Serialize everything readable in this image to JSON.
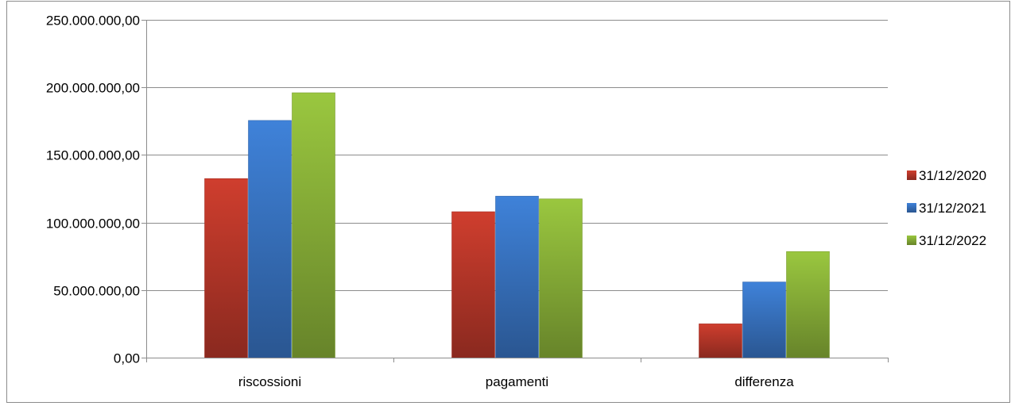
{
  "chart_data": {
    "type": "bar",
    "categories": [
      "riscossioni",
      "pagamenti",
      "differenza"
    ],
    "series": [
      {
        "name": "31/12/2020",
        "values": [
          132500000,
          108000000,
          25000000
        ],
        "color": "#c0392b"
      },
      {
        "name": "31/12/2021",
        "values": [
          175500000,
          119500000,
          56000000
        ],
        "color": "#3a78c9"
      },
      {
        "name": "31/12/2022",
        "values": [
          196000000,
          117500000,
          78500000
        ],
        "color": "#8fb83a"
      }
    ],
    "yticks": [
      "0,00",
      "50.000.000,00",
      "100.000.000,00",
      "150.000.000,00",
      "200.000.000,00",
      "250.000.000,00"
    ],
    "ylim": [
      0,
      250000000
    ],
    "grid": true,
    "legend_position": "right"
  }
}
